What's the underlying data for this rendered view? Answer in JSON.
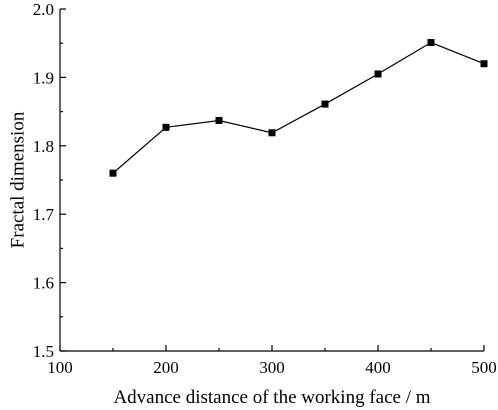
{
  "chart_data": {
    "type": "line",
    "title": "",
    "xlabel": "Advance distance of the working face / m",
    "ylabel": "Fractal dimension",
    "xlim": [
      100,
      500
    ],
    "ylim": [
      1.5,
      2.0
    ],
    "x_ticks": [
      100,
      200,
      300,
      400,
      500
    ],
    "y_ticks": [
      1.5,
      1.6,
      1.7,
      1.8,
      1.9,
      2.0
    ],
    "x_tick_labels": [
      "100",
      "200",
      "300",
      "400",
      "500"
    ],
    "y_tick_labels": [
      "1.5",
      "1.6",
      "1.7",
      "1.8",
      "1.9",
      "2.0"
    ],
    "grid": false,
    "legend": "none",
    "series": [
      {
        "marker": "square",
        "color": "#000000",
        "x": [
          150,
          200,
          250,
          300,
          350,
          400,
          450,
          500
        ],
        "y": [
          1.76,
          1.827,
          1.837,
          1.819,
          1.861,
          1.905,
          1.951,
          1.92
        ]
      }
    ]
  }
}
